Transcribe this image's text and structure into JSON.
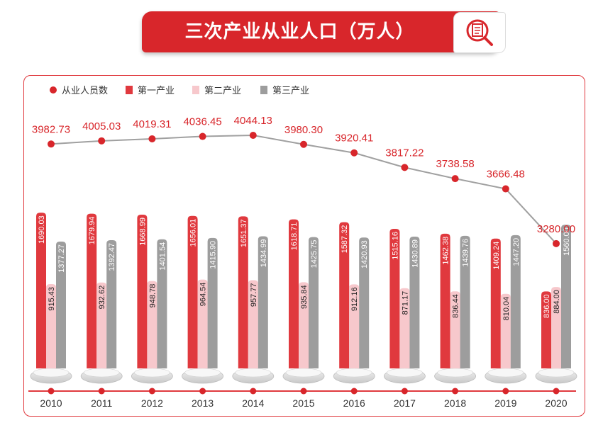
{
  "title": "三次产业从业人口（万人）",
  "title_icon": "magnifier-document-icon",
  "colors": {
    "accent": "#d8262b",
    "total": "#d8262b",
    "primary": "#e0393e",
    "secondary": "#f7c8cc",
    "tertiary": "#9d9d9d",
    "line": "#a0a0a0"
  },
  "chart_data": {
    "type": "bar",
    "title": "三次产业从业人口（万人）",
    "categories": [
      "2010",
      "2011",
      "2012",
      "2013",
      "2014",
      "2015",
      "2016",
      "2017",
      "2018",
      "2019",
      "2020"
    ],
    "legend": [
      "从业人员数",
      "第一产业",
      "第二产业",
      "第三产业"
    ],
    "legend_position": "top-left",
    "series": [
      {
        "name": "从业人员数",
        "kind": "line",
        "color": "#d8262b",
        "values": [
          3982.73,
          4005.03,
          4019.31,
          4036.45,
          4044.13,
          3980.3,
          3920.41,
          3817.22,
          3738.58,
          3666.48,
          3280.0
        ],
        "labels": [
          "3982.73",
          "4005.03",
          "4019.31",
          "4036.45",
          "4044.13",
          "3980.30",
          "3920.41",
          "3817.22",
          "3738.58",
          "3666.48",
          "3280.00"
        ]
      },
      {
        "name": "第一产业",
        "kind": "bar",
        "color": "#e0393e",
        "values": [
          1690.03,
          1679.94,
          1668.99,
          1656.01,
          1651.37,
          1618.71,
          1587.32,
          1515.16,
          1462.38,
          1409.24,
          836.0
        ],
        "labels": [
          "1690.03",
          "1679.94",
          "1668.99",
          "1656.01",
          "1651.37",
          "1618.71",
          "1587.32",
          "1515.16",
          "1462.38",
          "1409.24",
          "836.00"
        ]
      },
      {
        "name": "第二产业",
        "kind": "bar",
        "color": "#f7c8cc",
        "values": [
          915.43,
          932.62,
          948.78,
          964.54,
          957.77,
          935.84,
          912.16,
          871.17,
          836.44,
          810.04,
          884.0
        ],
        "labels": [
          "915.43",
          "932.62",
          "948.78",
          "964.54",
          "957.77",
          "935.84",
          "912.16",
          "871.17",
          "836.44",
          "810.04",
          "884.00"
        ]
      },
      {
        "name": "第三产业",
        "kind": "bar",
        "color": "#9d9d9d",
        "values": [
          1377.27,
          1392.47,
          1401.54,
          1415.9,
          1434.99,
          1425.75,
          1420.93,
          1430.89,
          1439.76,
          1447.2,
          1560.0
        ],
        "labels": [
          "1377.27",
          "1392.47",
          "1401.54",
          "1415.90",
          "1434.99",
          "1425.75",
          "1420.93",
          "1430.89",
          "1439.76",
          "1447.20",
          "1560.00"
        ]
      }
    ],
    "grid": false
  }
}
